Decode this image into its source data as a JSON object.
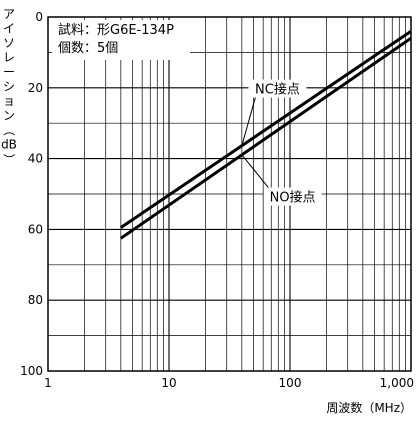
{
  "chart_data": {
    "type": "line",
    "xlabel": "周波数（MHz）",
    "ylabel_chars": [
      "ア",
      "イ",
      "ソ",
      "レ",
      "ー",
      "シ",
      "ョ",
      "ン",
      "（",
      "dB",
      "）"
    ],
    "x_scale": "log",
    "xlim": [
      1,
      1000
    ],
    "ylim": [
      0,
      100
    ],
    "y_inverted": true,
    "grid": true,
    "x_ticks": [
      1,
      10,
      100,
      1000
    ],
    "x_tick_labels": [
      "1",
      "10",
      "100",
      "1,000"
    ],
    "y_ticks": [
      0,
      20,
      40,
      60,
      80,
      100
    ],
    "y_tick_labels": [
      "0",
      "20",
      "40",
      "60",
      "80",
      "100"
    ],
    "sample_text": [
      "試料：形G6E-134P",
      "個数：5個"
    ],
    "series": [
      {
        "name": "NC接点",
        "x": [
          4,
          1000
        ],
        "y": [
          59.5,
          4.0
        ]
      },
      {
        "name": "NO接点",
        "x": [
          4,
          1000
        ],
        "y": [
          62.5,
          6.0
        ]
      }
    ],
    "annotations": [
      {
        "text": "NC接点",
        "series": "NC接点",
        "at_x": 40,
        "label_x": 90,
        "label_y": 20.5
      },
      {
        "text": "NO接点",
        "series": "NO接点",
        "at_x": 40,
        "label_x": 120,
        "label_y": 51
      }
    ],
    "line_color": "#000000",
    "grid_color": "#000000"
  }
}
